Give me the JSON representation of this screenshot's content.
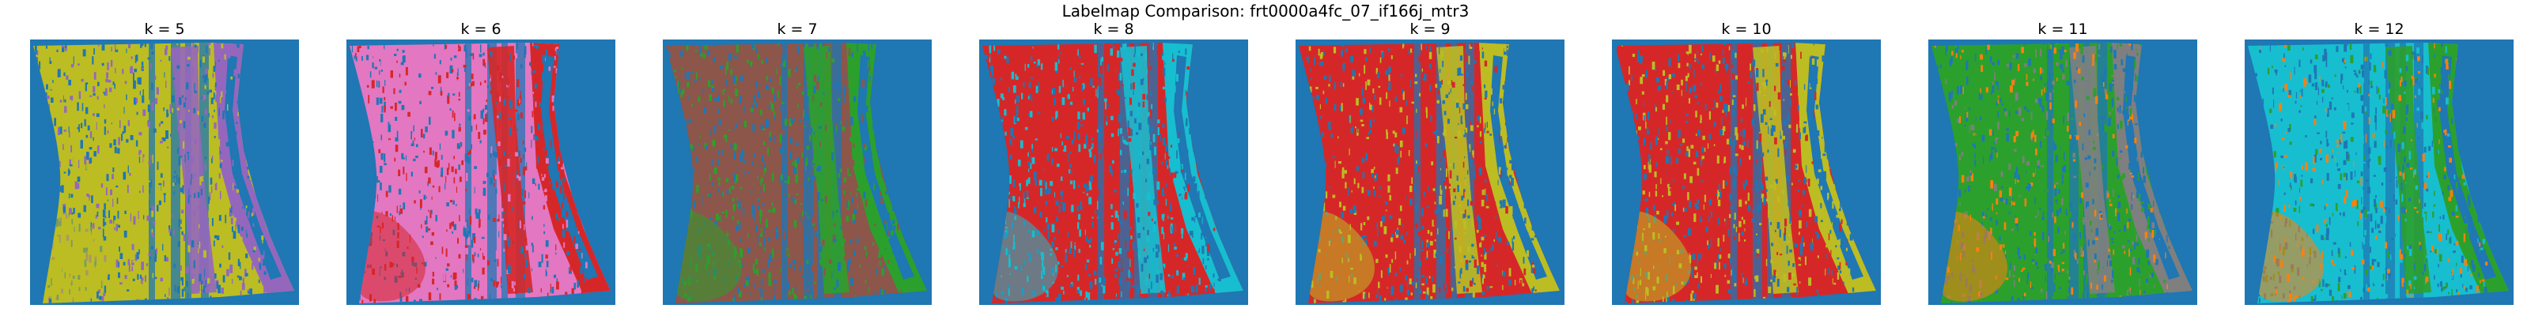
{
  "figure": {
    "title": "Labelmap Comparison: frt0000a4fc_07_if166j_mtr3"
  },
  "background_color": "#1f77b4",
  "panels": [
    {
      "title": "k = 5",
      "colors": [
        "#bcbd22",
        "#9467bd",
        "#9467bd",
        "#bcbd22"
      ]
    },
    {
      "title": "k = 6",
      "colors": [
        "#e377c2",
        "#d62728",
        "#e377c2",
        "#d62728"
      ]
    },
    {
      "title": "k = 7",
      "colors": [
        "#8c564b",
        "#2ca02c",
        "#8c564b",
        "#2ca02c"
      ]
    },
    {
      "title": "k = 8",
      "colors": [
        "#d62728",
        "#17becf",
        "#d62728",
        "#17becf"
      ]
    },
    {
      "title": "k = 9",
      "colors": [
        "#d62728",
        "#bcbd22",
        "#d62728",
        "#bcbd22"
      ]
    },
    {
      "title": "k = 10",
      "colors": [
        "#d62728",
        "#bcbd22",
        "#d62728",
        "#bcbd22"
      ]
    },
    {
      "title": "k = 11",
      "colors": [
        "#2ca02c",
        "#7f7f7f",
        "#2ca02c",
        "#ff7f0e"
      ]
    },
    {
      "title": "k = 12",
      "colors": [
        "#17becf",
        "#2ca02c",
        "#17becf",
        "#ff7f0e"
      ]
    }
  ]
}
